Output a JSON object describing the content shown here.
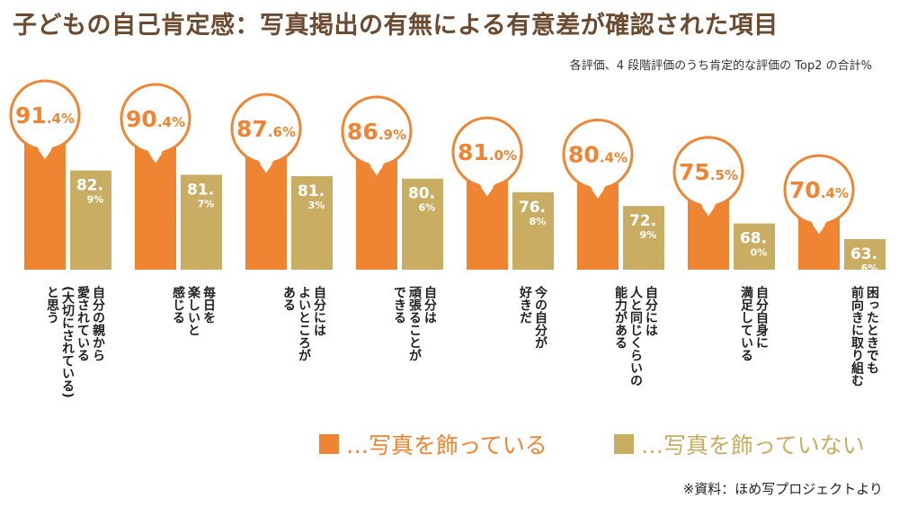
{
  "title": "子どもの自己肯定感：写真掲出の有無による有意差が確認された項目",
  "subtitle": "各評価、4 段階評価のうち肯定的な評価の Top2 の合計%",
  "source": "※資料：ほめ写プロジェクトより",
  "colors": {
    "with": "#ef8433",
    "without": "#c8ad63",
    "title": "#6b4a2f"
  },
  "chart_data": {
    "type": "bar",
    "categories": [
      "自分の親から\n愛されている\n(大切にされている)\nと思う",
      "毎日を\n楽しいと\n感じる",
      "自分には\nよいところが\nある",
      "自分は\n頑張ることが\nできる",
      "今の自分が\n好きだ",
      "自分には\n人と同じくらいの\n能力がある",
      "自分自身に\n満足している",
      "困ったときでも\n前向きに取り組む"
    ],
    "series": [
      {
        "name": "…写真を飾っている",
        "values": [
          91.4,
          90.4,
          87.6,
          86.9,
          81.0,
          80.4,
          75.5,
          70.4
        ]
      },
      {
        "name": "…写真を飾っていない",
        "values": [
          82.9,
          81.7,
          81.3,
          80.6,
          76.8,
          72.9,
          68.0,
          63.6
        ]
      }
    ],
    "unit": "%",
    "ylim": [
      55,
      100
    ],
    "legend": "bottom"
  }
}
